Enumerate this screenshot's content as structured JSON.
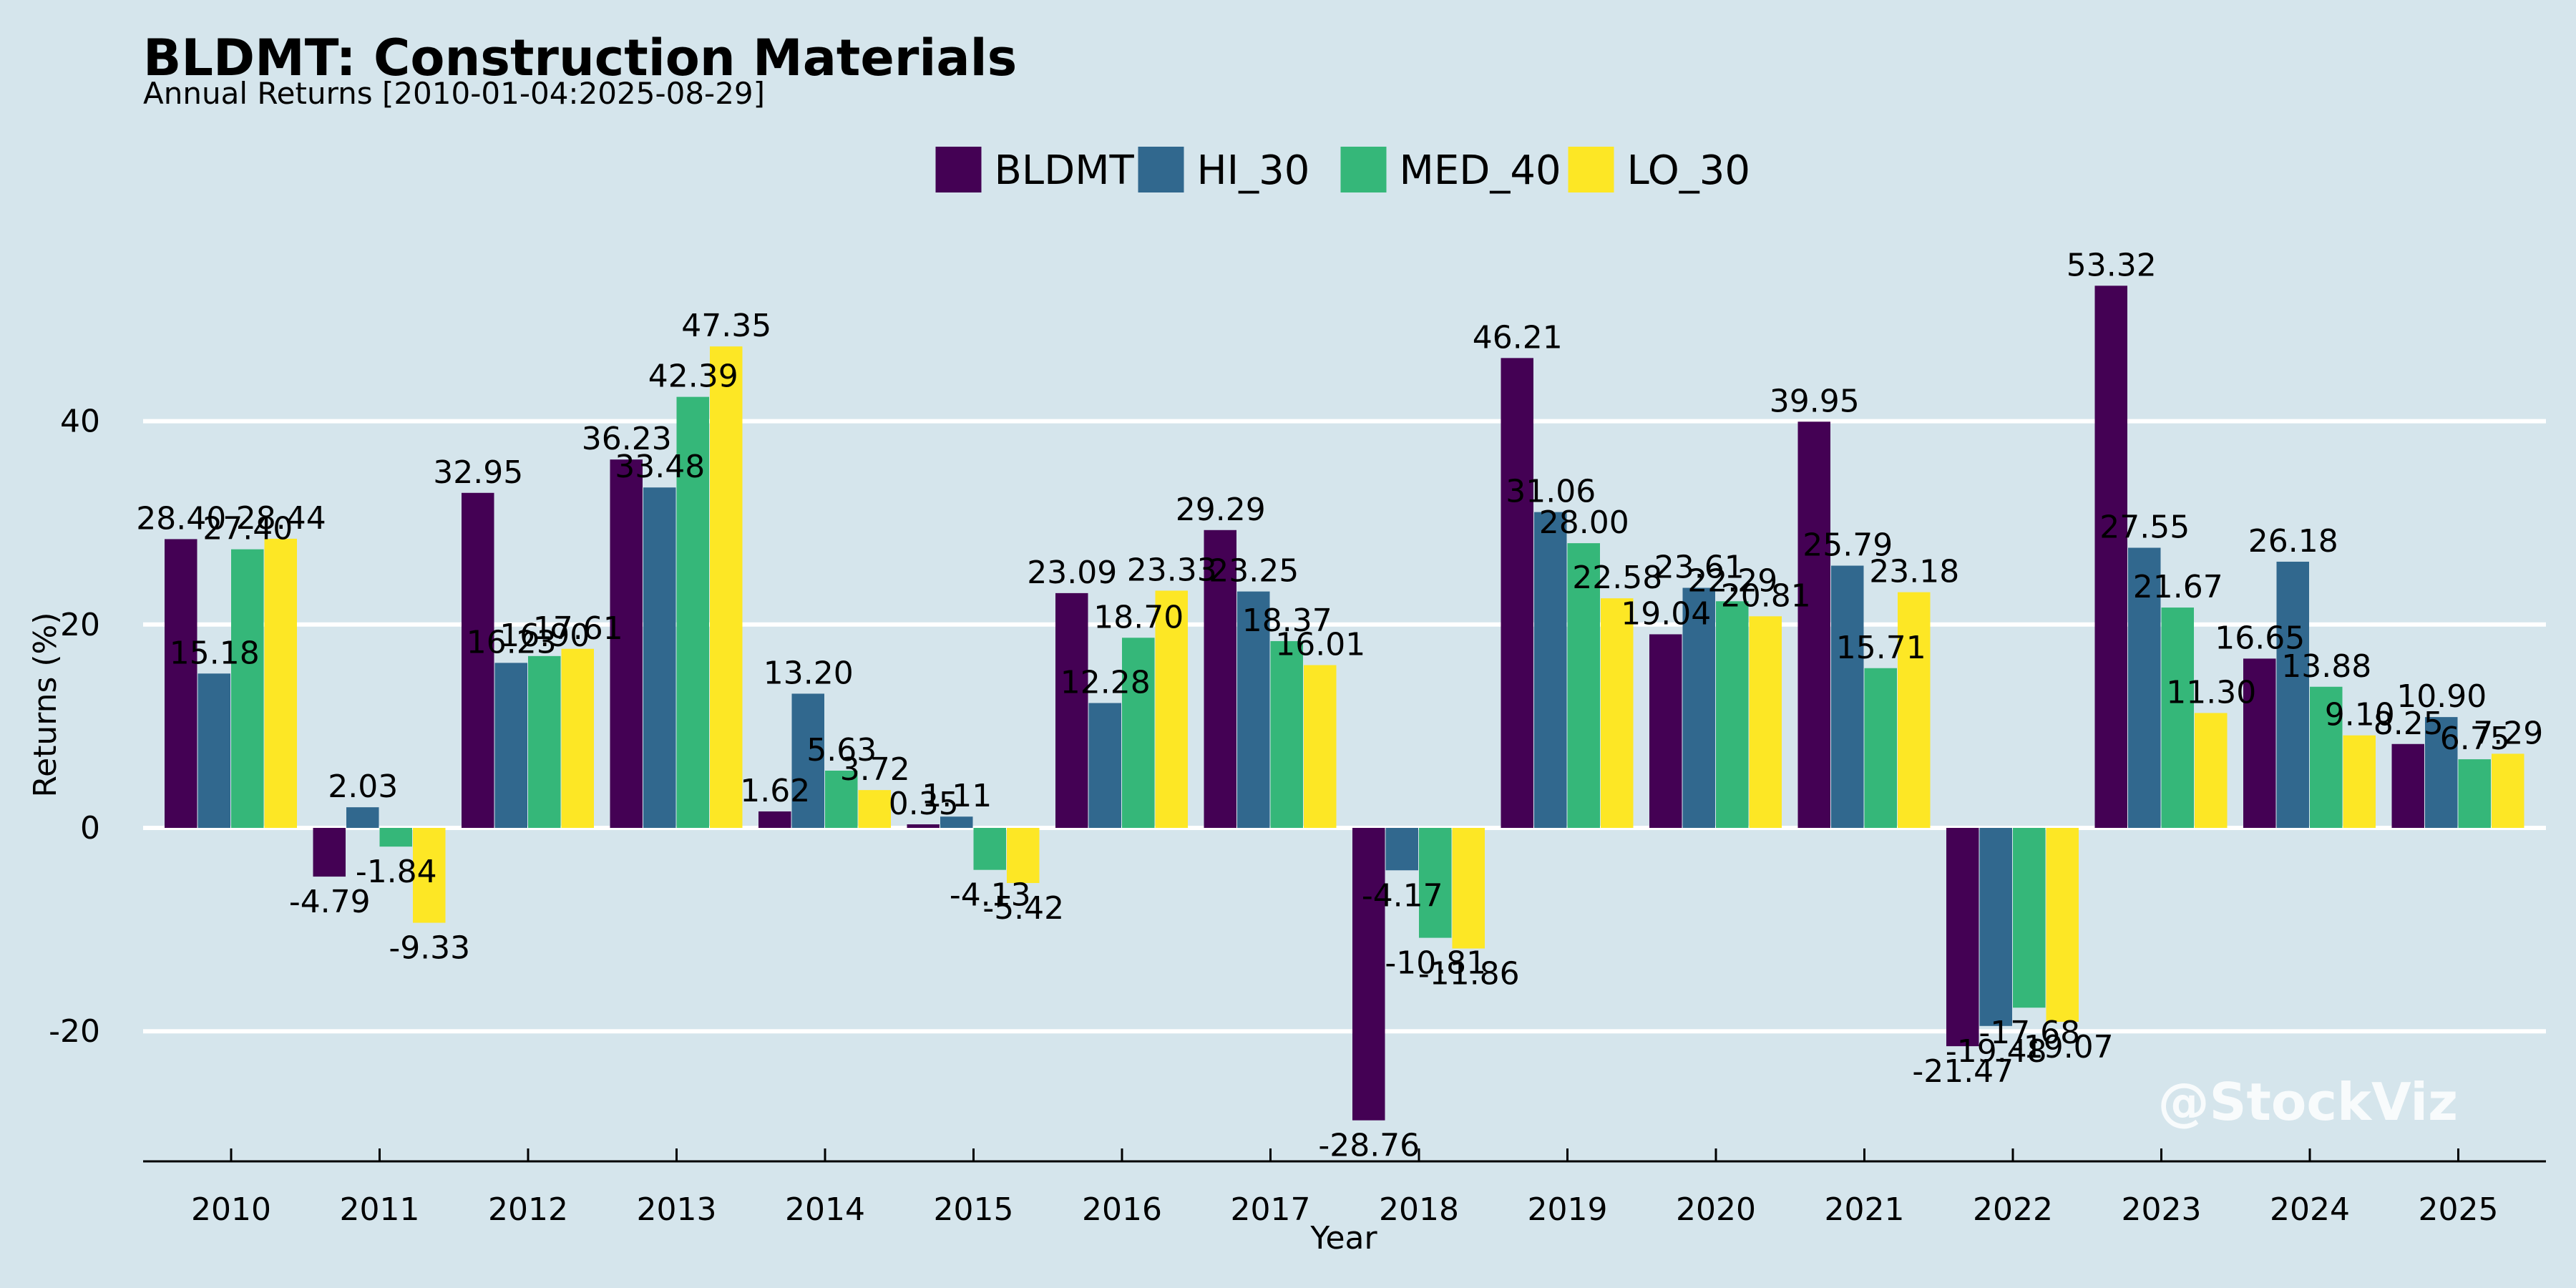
{
  "chart_data": {
    "type": "bar",
    "title": "BLDMT: Construction Materials",
    "subtitle": "Annual Returns [2010-01-04:2025-08-29]",
    "xlabel": "Year",
    "ylabel": "Returns (%)",
    "ylim": [
      -33,
      60
    ],
    "yticks": [
      -20,
      0,
      20,
      40
    ],
    "grid": "horizontal",
    "legend_position": "top-center",
    "categories": [
      "2010",
      "2011",
      "2012",
      "2013",
      "2014",
      "2015",
      "2016",
      "2017",
      "2018",
      "2019",
      "2020",
      "2021",
      "2022",
      "2023",
      "2024",
      "2025"
    ],
    "series": [
      {
        "name": "BLDMT",
        "color": "#440154",
        "values": [
          28.4,
          -4.79,
          32.95,
          36.23,
          1.62,
          0.35,
          23.09,
          29.29,
          -28.76,
          46.21,
          19.04,
          39.95,
          -21.47,
          53.32,
          16.65,
          8.25
        ]
      },
      {
        "name": "HI_30",
        "color": "#31688e",
        "values": [
          15.18,
          2.03,
          16.23,
          33.48,
          13.2,
          1.11,
          12.28,
          23.25,
          -4.17,
          31.06,
          23.61,
          25.79,
          -19.48,
          27.55,
          26.18,
          10.9
        ]
      },
      {
        "name": "MED_40",
        "color": "#35b779",
        "values": [
          27.4,
          -1.84,
          16.9,
          42.39,
          5.63,
          -4.13,
          18.7,
          18.37,
          -10.81,
          28.0,
          22.29,
          15.71,
          -17.68,
          21.67,
          13.88,
          6.75
        ]
      },
      {
        "name": "LO_30",
        "color": "#fde725",
        "values": [
          28.44,
          -9.33,
          17.61,
          47.35,
          3.72,
          -5.42,
          23.33,
          16.01,
          -11.86,
          22.58,
          20.81,
          23.18,
          -19.07,
          11.3,
          9.1,
          7.29
        ]
      }
    ]
  },
  "watermark": "@StockViz"
}
